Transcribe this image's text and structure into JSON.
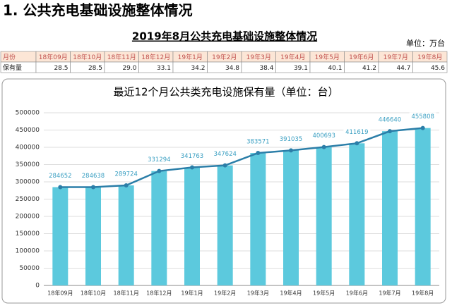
{
  "heading": "1. 公共充电基础设施整体情况",
  "table": {
    "title": "2019年8月公共充电基础设施整体情况",
    "unit": "单位：万台",
    "rows": [
      [
        "月份",
        "18年09月",
        "18年10月",
        "18年11月",
        "18年12月",
        "19年1月",
        "19年2月",
        "19年3月",
        "19年4月",
        "19年5月",
        "19年6月",
        "19年7月",
        "19年8月"
      ],
      [
        "保有量",
        "28.5",
        "28.5",
        "29.0",
        "33.1",
        "34.2",
        "34.8",
        "38.4",
        "39.1",
        "40.1",
        "41.2",
        "44.7",
        "45.6"
      ]
    ]
  },
  "chart_data": {
    "type": "bar",
    "title": "最近12个月公共类充电设施保有量（单位：台）",
    "categories": [
      "18年09月",
      "18年10月",
      "18年11月",
      "18年12月",
      "19年1月",
      "19年2月",
      "19年3月",
      "19年4月",
      "19年5月",
      "19年6月",
      "19年7月",
      "19年8月"
    ],
    "values": [
      284652,
      284638,
      289724,
      331294,
      341763,
      347624,
      383571,
      391035,
      400693,
      411619,
      446640,
      455808
    ],
    "color": "#5cc9dd",
    "line_color": "#2b7ea8",
    "ylim": [
      0,
      500000
    ],
    "yticks": [
      0,
      50000,
      100000,
      150000,
      200000,
      250000,
      300000,
      350000,
      400000,
      450000,
      500000
    ],
    "grid": true
  }
}
